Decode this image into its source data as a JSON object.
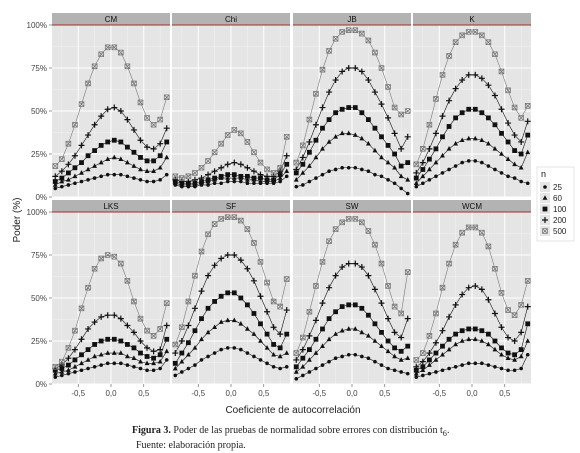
{
  "chart_data": {
    "type": "line",
    "facet_layout": "2 rows x 4 columns",
    "ylabel": "Poder (%)",
    "xlabel": "Coeficiente de autocorrelación",
    "x_ticks": [
      "-0,5",
      "0,0",
      "0,5"
    ],
    "y_ticks": [
      "0%",
      "25%",
      "50%",
      "75%",
      "100%"
    ],
    "xlim": [
      -0.9,
      0.9
    ],
    "ylim": [
      0,
      100
    ],
    "reference_line": 100,
    "grid": true,
    "legend": {
      "title": "n",
      "position": "right"
    },
    "x": [
      -0.85,
      -0.75,
      -0.65,
      -0.55,
      -0.45,
      -0.35,
      -0.25,
      -0.15,
      -0.05,
      0.05,
      0.15,
      0.25,
      0.35,
      0.45,
      0.55,
      0.65,
      0.75,
      0.85
    ],
    "series_meta": [
      {
        "name": "25",
        "symbol": "dot",
        "color": "#111111"
      },
      {
        "name": "60",
        "symbol": "tri",
        "color": "#111111"
      },
      {
        "name": "100",
        "symbol": "square",
        "color": "#111111"
      },
      {
        "name": "200",
        "symbol": "plus",
        "color": "#111111"
      },
      {
        "name": "500",
        "symbol": "boxx",
        "color": "#7a7a7a"
      }
    ],
    "panels": [
      {
        "title": "CM",
        "series": [
          {
            "name": "25",
            "values": [
              5,
              6,
              7,
              8,
              9,
              10,
              11,
              12,
              13,
              13,
              13,
              12,
              11,
              10,
              9,
              9,
              10,
              13
            ]
          },
          {
            "name": "60",
            "values": [
              7,
              9,
              10,
              12,
              14,
              16,
              18,
              20,
              22,
              23,
              22,
              20,
              18,
              16,
              15,
              15,
              17,
              23
            ]
          },
          {
            "name": "100",
            "values": [
              9,
              11,
              14,
              17,
              20,
              24,
              27,
              30,
              32,
              33,
              32,
              29,
              26,
              23,
              21,
              21,
              24,
              32
            ]
          },
          {
            "name": "200",
            "values": [
              12,
              15,
              19,
              24,
              30,
              36,
              42,
              47,
              51,
              52,
              50,
              45,
              39,
              33,
              29,
              28,
              31,
              40
            ]
          },
          {
            "name": "500",
            "values": [
              18,
              22,
              31,
              42,
              54,
              66,
              76,
              83,
              87,
              87,
              84,
              76,
              66,
              55,
              46,
              42,
              45,
              58
            ]
          }
        ]
      },
      {
        "title": "Chi",
        "series": [
          {
            "name": "25",
            "values": [
              7,
              6,
              6,
              6,
              7,
              7,
              8,
              8,
              9,
              9,
              9,
              8,
              8,
              8,
              8,
              8,
              9,
              12
            ]
          },
          {
            "name": "60",
            "values": [
              8,
              7,
              7,
              7,
              8,
              9,
              10,
              11,
              11,
              11,
              11,
              10,
              10,
              9,
              9,
              9,
              11,
              15
            ]
          },
          {
            "name": "100",
            "values": [
              9,
              8,
              8,
              8,
              9,
              10,
              11,
              12,
              13,
              13,
              12,
              12,
              11,
              11,
              10,
              10,
              13,
              19
            ]
          },
          {
            "name": "200",
            "values": [
              10,
              9,
              9,
              10,
              11,
              13,
              15,
              17,
              19,
              20,
              19,
              17,
              15,
              13,
              12,
              12,
              15,
              24
            ]
          },
          {
            "name": "500",
            "values": [
              12,
              11,
              12,
              14,
              17,
              21,
              26,
              31,
              36,
              39,
              37,
              32,
              26,
              20,
              16,
              14,
              17,
              35
            ]
          }
        ]
      },
      {
        "title": "JB",
        "series": [
          {
            "name": "25",
            "values": [
              6,
              7,
              9,
              11,
              13,
              15,
              16,
              17,
              17,
              17,
              16,
              15,
              13,
              12,
              10,
              8,
              5,
              2
            ]
          },
          {
            "name": "60",
            "values": [
              10,
              14,
              18,
              23,
              28,
              32,
              35,
              37,
              37,
              36,
              34,
              31,
              27,
              23,
              20,
              17,
              12,
              10
            ]
          },
          {
            "name": "100",
            "values": [
              14,
              19,
              26,
              33,
              40,
              45,
              49,
              51,
              52,
              52,
              49,
              45,
              40,
              35,
              30,
              25,
              18,
              20
            ]
          },
          {
            "name": "200",
            "values": [
              16,
              23,
              32,
              42,
              52,
              61,
              68,
              73,
              75,
              75,
              73,
              68,
              61,
              54,
              46,
              37,
              28,
              35
            ]
          },
          {
            "name": "500",
            "values": [
              20,
              30,
              45,
              60,
              74,
              85,
              92,
              96,
              97,
              97,
              95,
              91,
              84,
              75,
              64,
              52,
              48,
              50
            ]
          }
        ]
      },
      {
        "title": "K",
        "series": [
          {
            "name": "25",
            "values": [
              6,
              8,
              10,
              12,
              14,
              16,
              18,
              20,
              21,
              21,
              20,
              18,
              16,
              14,
              12,
              11,
              9,
              8
            ]
          },
          {
            "name": "60",
            "values": [
              8,
              12,
              16,
              20,
              24,
              28,
              31,
              33,
              34,
              34,
              33,
              31,
              28,
              25,
              22,
              19,
              17,
              26
            ]
          },
          {
            "name": "100",
            "values": [
              11,
              16,
              22,
              28,
              35,
              41,
              46,
              49,
              51,
              51,
              49,
              46,
              42,
              37,
              32,
              27,
              25,
              36
            ]
          },
          {
            "name": "200",
            "values": [
              14,
              20,
              28,
              37,
              47,
              56,
              63,
              68,
              71,
              71,
              69,
              65,
              59,
              51,
              43,
              36,
              32,
              44
            ]
          },
          {
            "name": "500",
            "values": [
              19,
              28,
              42,
              57,
              71,
              82,
              90,
              94,
              96,
              96,
              94,
              90,
              83,
              73,
              62,
              52,
              46,
              53
            ]
          }
        ]
      },
      {
        "title": "LKS",
        "series": [
          {
            "name": "25",
            "values": [
              4,
              5,
              6,
              7,
              8,
              9,
              10,
              11,
              12,
              12,
              12,
              11,
              10,
              9,
              8,
              8,
              9,
              14
            ]
          },
          {
            "name": "60",
            "values": [
              6,
              7,
              8,
              10,
              12,
              14,
              16,
              17,
              18,
              18,
              18,
              16,
              15,
              13,
              12,
              12,
              13,
              19
            ]
          },
          {
            "name": "100",
            "values": [
              8,
              9,
              11,
              14,
              17,
              20,
              23,
              25,
              26,
              26,
              25,
              23,
              21,
              18,
              16,
              15,
              17,
              26
            ]
          },
          {
            "name": "200",
            "values": [
              9,
              11,
              15,
              20,
              26,
              32,
              36,
              39,
              40,
              40,
              38,
              34,
              30,
              25,
              21,
              19,
              20,
              34
            ]
          },
          {
            "name": "500",
            "values": [
              10,
              13,
              21,
              31,
              44,
              56,
              67,
              73,
              75,
              74,
              70,
              60,
              48,
              38,
              31,
              28,
              32,
              47
            ]
          }
        ]
      },
      {
        "title": "SF",
        "series": [
          {
            "name": "25",
            "values": [
              5,
              7,
              9,
              11,
              14,
              16,
              18,
              20,
              21,
              21,
              20,
              18,
              16,
              14,
              12,
              10,
              9,
              10
            ]
          },
          {
            "name": "60",
            "values": [
              9,
              13,
              17,
              21,
              26,
              30,
              33,
              36,
              37,
              37,
              35,
              32,
              29,
              25,
              21,
              17,
              16,
              18
            ]
          },
          {
            "name": "100",
            "values": [
              12,
              18,
              24,
              31,
              38,
              44,
              48,
              51,
              53,
              53,
              50,
              46,
              41,
              35,
              29,
              23,
              21,
              29
            ]
          },
          {
            "name": "200",
            "values": [
              18,
              25,
              34,
              44,
              54,
              63,
              69,
              73,
              75,
              75,
              72,
              67,
              60,
              51,
              42,
              33,
              29,
              43
            ]
          },
          {
            "name": "500",
            "values": [
              23,
              33,
              48,
              63,
              77,
              87,
              93,
              96,
              97,
              97,
              95,
              90,
              82,
              71,
              59,
              48,
              45,
              61
            ]
          }
        ]
      },
      {
        "title": "SW",
        "series": [
          {
            "name": "25",
            "values": [
              3,
              5,
              7,
              9,
              11,
              13,
              15,
              16,
              17,
              17,
              16,
              15,
              13,
              11,
              9,
              8,
              7,
              6
            ]
          },
          {
            "name": "60",
            "values": [
              7,
              10,
              14,
              18,
              22,
              26,
              29,
              31,
              32,
              32,
              30,
              28,
              25,
              22,
              19,
              16,
              14,
              15
            ]
          },
          {
            "name": "100",
            "values": [
              10,
              15,
              20,
              26,
              32,
              38,
              42,
              45,
              46,
              46,
              44,
              40,
              35,
              30,
              25,
              21,
              19,
              22
            ]
          },
          {
            "name": "200",
            "values": [
              14,
              20,
              28,
              37,
              47,
              56,
              63,
              68,
              70,
              70,
              68,
              63,
              55,
              47,
              38,
              30,
              27,
              38
            ]
          },
          {
            "name": "500",
            "values": [
              18,
              27,
              42,
              57,
              71,
              83,
              90,
              94,
              96,
              96,
              94,
              89,
              81,
              70,
              57,
              45,
              41,
              65
            ]
          }
        ]
      },
      {
        "title": "WCM",
        "series": [
          {
            "name": "25",
            "values": [
              4,
              5,
              6,
              7,
              8,
              9,
              10,
              11,
              12,
              12,
              12,
              11,
              10,
              9,
              8,
              8,
              9,
              17
            ]
          },
          {
            "name": "60",
            "values": [
              6,
              8,
              11,
              14,
              17,
              20,
              23,
              25,
              26,
              26,
              25,
              23,
              20,
              17,
              15,
              14,
              16,
              25
            ]
          },
          {
            "name": "100",
            "values": [
              8,
              10,
              14,
              18,
              22,
              26,
              29,
              31,
              32,
              32,
              31,
              29,
              25,
              21,
              18,
              17,
              20,
              35
            ]
          },
          {
            "name": "200",
            "values": [
              10,
              13,
              18,
              24,
              31,
              39,
              46,
              52,
              56,
              57,
              55,
              49,
              41,
              33,
              27,
              25,
              30,
              45
            ]
          },
          {
            "name": "500",
            "values": [
              14,
              18,
              28,
              41,
              56,
              70,
              81,
              88,
              91,
              91,
              88,
              80,
              67,
              53,
              43,
              40,
              46,
              60
            ]
          }
        ]
      }
    ]
  },
  "caption": {
    "figure_label": "Figura 3.",
    "text": " Poder de las pruebas de normalidad sobre errores con distribución t",
    "text_sub": "6",
    "text_end": ".",
    "source": "Fuente: elaboración propia."
  }
}
